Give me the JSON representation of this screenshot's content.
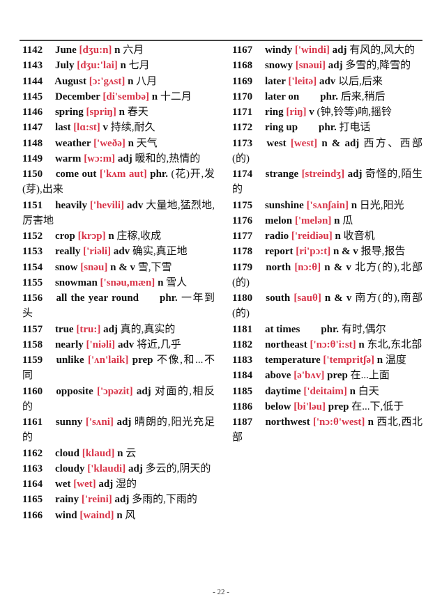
{
  "page_number": "- 22 -",
  "colors": {
    "phonetic": "#d9364a",
    "text": "#111111"
  },
  "left_entries": [
    {
      "num": "1142",
      "word": "June",
      "phon": "[dʒu:n]",
      "pos": "n",
      "def": "六月"
    },
    {
      "num": "1143",
      "word": "July",
      "phon": "[dʒu:'lai]",
      "pos": "n",
      "def": "七月"
    },
    {
      "num": "1144",
      "word": "August",
      "phon": "[ɔ:'gʌst]",
      "pos": "n",
      "def": "八月"
    },
    {
      "num": "1145",
      "word": "December",
      "phon": "[di'sembə]",
      "pos": "n",
      "def": "十二月"
    },
    {
      "num": "1146",
      "word": "spring",
      "phon": "[spriŋ]",
      "pos": "n",
      "def": "春天"
    },
    {
      "num": "1147",
      "word": "last",
      "phon": "[lɑ:st]",
      "pos": "v",
      "def": "持续,耐久"
    },
    {
      "num": "1148",
      "word": "weather",
      "phon": "['weðə]",
      "pos": "n",
      "def": "天气"
    },
    {
      "num": "1149",
      "word": "warm",
      "phon": "[wɔ:m]",
      "pos": "adj",
      "def": "暖和的,热情的"
    },
    {
      "num": "1150",
      "word": "come out",
      "phon": "['kʌm aut]",
      "pos": "phr.",
      "def": "(花)开,发(芽),出来"
    },
    {
      "num": "1151",
      "word": "heavily",
      "phon": "['hevili]",
      "pos": "adv",
      "def": "大量地,猛烈地,厉害地"
    },
    {
      "num": "1152",
      "word": "crop",
      "phon": "[krɔp]",
      "pos": "n",
      "def": "庄稼,收成"
    },
    {
      "num": "1153",
      "word": "really",
      "phon": "['riəli]",
      "pos": "adv",
      "def": "确实,真正地"
    },
    {
      "num": "1154",
      "word": "snow",
      "phon": "[snəu]",
      "pos": "n & v",
      "def": "雪,下雪"
    },
    {
      "num": "1155",
      "word": "snowman",
      "phon": "['snəu,mæn]",
      "pos": "n",
      "def": "雪人"
    },
    {
      "num": "1156",
      "word": "all the year round",
      "phon": "",
      "pos": "phr.",
      "def": "一年到头"
    },
    {
      "num": "1157",
      "word": "true",
      "phon": "[tru:]",
      "pos": "adj",
      "def": "真的,真实的"
    },
    {
      "num": "1158",
      "word": "nearly",
      "phon": "['niəli]",
      "pos": "adv",
      "def": "将近,几乎"
    },
    {
      "num": "1159",
      "word": "unlike",
      "phon": "['ʌn'laik]",
      "pos": "prep",
      "def": "不像,和...不同"
    },
    {
      "num": "1160",
      "word": "opposite",
      "phon": "['ɔpəzit]",
      "pos": "adj",
      "def": "对面的,相反的"
    },
    {
      "num": "1161",
      "word": "sunny",
      "phon": "['sʌni]",
      "pos": "adj",
      "def": "晴朗的,阳光充足的"
    },
    {
      "num": "1162",
      "word": "cloud",
      "phon": "[klaud]",
      "pos": "n",
      "def": "云"
    },
    {
      "num": "1163",
      "word": "cloudy",
      "phon": "['klaudi]",
      "pos": "adj",
      "def": "多云的,阴天的"
    },
    {
      "num": "1164",
      "word": "wet",
      "phon": "[wet]",
      "pos": "adj",
      "def": "湿的"
    },
    {
      "num": "1165",
      "word": "rainy",
      "phon": "['reini]",
      "pos": "adj",
      "def": "多雨的,下雨的"
    },
    {
      "num": "1166",
      "word": "wind",
      "phon": "[waind]",
      "pos": "n",
      "def": "风"
    }
  ],
  "right_entries": [
    {
      "num": "1167",
      "word": "windy",
      "phon": "['windi]",
      "pos": "adj",
      "def": "有风的,风大的"
    },
    {
      "num": "1168",
      "word": "snowy",
      "phon": "[snəui]",
      "pos": "adj",
      "def": "多雪的,降雪的"
    },
    {
      "num": "1169",
      "word": "later",
      "phon": "['leitə]",
      "pos": "adv",
      "def": "以后,后来"
    },
    {
      "num": "1170",
      "word": "later on",
      "phon": "",
      "pos": "phr.",
      "def": "后来,稍后"
    },
    {
      "num": "1171",
      "word": "ring",
      "phon": "[riŋ]",
      "pos": "v",
      "def": "(钟,铃等)响,摇铃"
    },
    {
      "num": "1172",
      "word": "ring up",
      "phon": "",
      "pos": "phr.",
      "def": "打电话"
    },
    {
      "num": "1173",
      "word": "west",
      "phon": "[west]",
      "pos": "n & adj",
      "def": "西方、西部(的)"
    },
    {
      "num": "1174",
      "word": "strange",
      "phon": "[streindʒ]",
      "pos": "adj",
      "def": "奇怪的,陌生的"
    },
    {
      "num": "1175",
      "word": "sunshine",
      "phon": "['sʌnʃain]",
      "pos": "n",
      "def": "日光,阳光"
    },
    {
      "num": "1176",
      "word": "melon",
      "phon": "['melən]",
      "pos": "n",
      "def": "瓜"
    },
    {
      "num": "1177",
      "word": "radio",
      "phon": "['reidiəu]",
      "pos": "n",
      "def": "收音机"
    },
    {
      "num": "1178",
      "word": "report",
      "phon": "[ri'pɔ:t]",
      "pos": "n & v",
      "def": "报导,报告"
    },
    {
      "num": "1179",
      "word": "north",
      "phon": "[nɔ:θ]",
      "pos": "n & v",
      "def": "北方(的),北部(的)"
    },
    {
      "num": "1180",
      "word": "south",
      "phon": "[sauθ]",
      "pos": "n & v",
      "def": "南方(的),南部(的)"
    },
    {
      "num": "1181",
      "word": "at times",
      "phon": "",
      "pos": "phr.",
      "def": "有时,偶尔"
    },
    {
      "num": "1182",
      "word": "northeast",
      "phon": "['nɔ:θ'i:st]",
      "pos": "n",
      "def": "东北,东北部"
    },
    {
      "num": "1183",
      "word": "temperature",
      "phon": "['tempritʃə]",
      "pos": "n",
      "def": "温度"
    },
    {
      "num": "1184",
      "word": "above",
      "phon": "[ə'bʌv]",
      "pos": "prep",
      "def": "在...上面"
    },
    {
      "num": "1185",
      "word": "daytime",
      "phon": "['deitaim]",
      "pos": "n",
      "def": "白天"
    },
    {
      "num": "1186",
      "word": "below",
      "phon": "[bi'ləu]",
      "pos": "prep",
      "def": "在...下,低于"
    },
    {
      "num": "1187",
      "word": "northwest",
      "phon": "['nɔ:θ'west]",
      "pos": "n",
      "def": "西北,西北部"
    }
  ]
}
